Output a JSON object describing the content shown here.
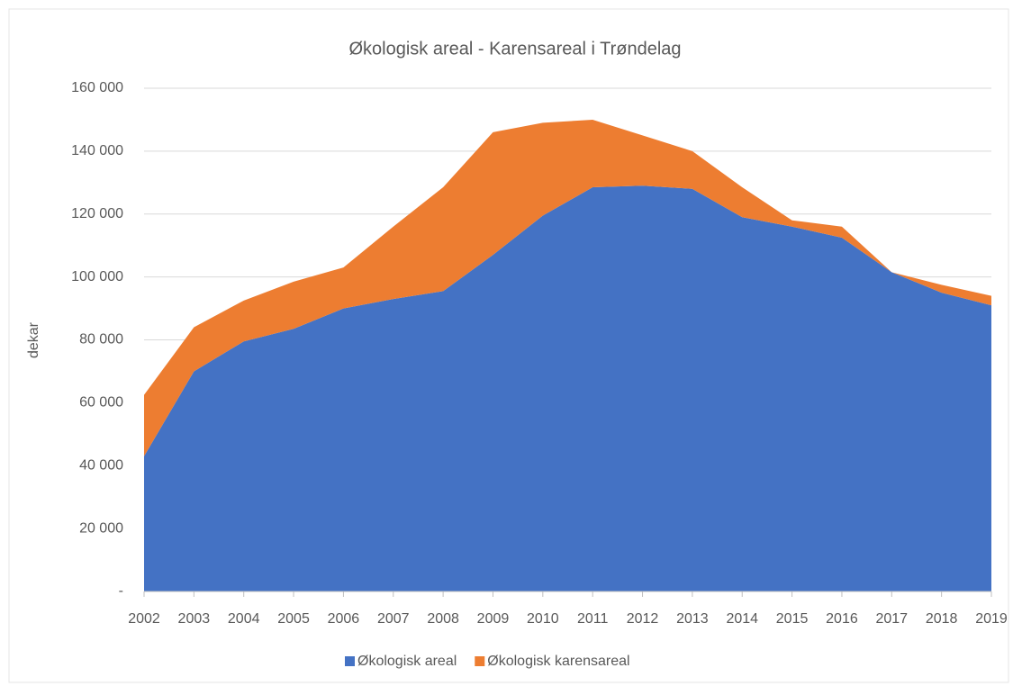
{
  "chart_data": {
    "type": "stacked_area",
    "title": "Økologisk areal - Karensareal i Trøndelag",
    "y_label": "dekar",
    "categories": [
      "2002",
      "2003",
      "2004",
      "2005",
      "2006",
      "2007",
      "2008",
      "2009",
      "2010",
      "2011",
      "2012",
      "2013",
      "2014",
      "2015",
      "2016",
      "2017",
      "2018",
      "2019"
    ],
    "series": [
      {
        "name": "Økologisk areal",
        "color": "#4472c4",
        "values": [
          43000,
          70000,
          79500,
          83500,
          90000,
          93000,
          95500,
          107000,
          119500,
          128500,
          129000,
          128000,
          119000,
          116000,
          112500,
          101500,
          95000,
          91000
        ]
      },
      {
        "name": "Økologisk karensareal",
        "color": "#ed7d31",
        "values": [
          19500,
          14000,
          13000,
          15000,
          13000,
          23000,
          33000,
          39000,
          29500,
          21500,
          16000,
          12000,
          9500,
          2000,
          3500,
          0,
          2500,
          3000
        ]
      }
    ],
    "ylim": [
      0,
      160000
    ],
    "yticks": [
      {
        "value": 0,
        "label": "-"
      },
      {
        "value": 20000,
        "label": "20 000"
      },
      {
        "value": 40000,
        "label": "40 000"
      },
      {
        "value": 60000,
        "label": "60 000"
      },
      {
        "value": 80000,
        "label": "80 000"
      },
      {
        "value": 100000,
        "label": "100 000"
      },
      {
        "value": 120000,
        "label": "120 000"
      },
      {
        "value": 140000,
        "label": "140 000"
      },
      {
        "value": 160000,
        "label": "160 000"
      }
    ],
    "grid": true,
    "legend": "bottom"
  }
}
